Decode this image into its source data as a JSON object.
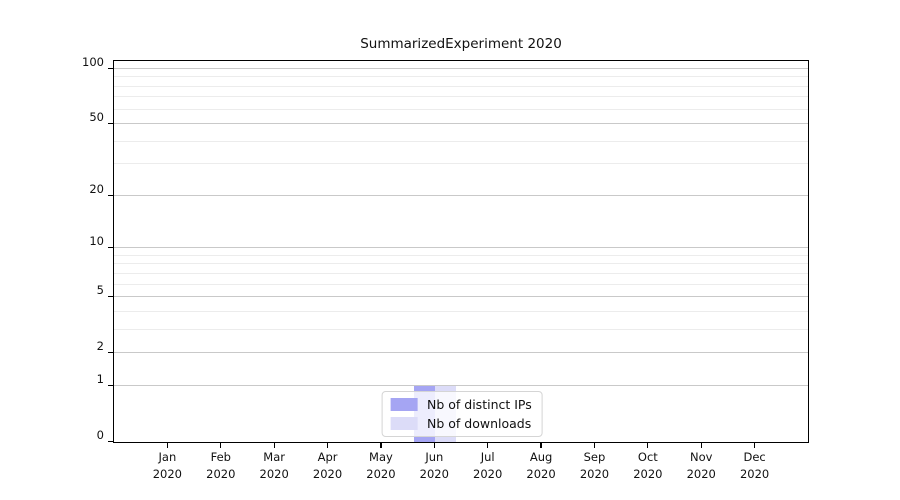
{
  "chart_data": {
    "type": "bar",
    "title": "SummarizedExperiment 2020",
    "categories": [
      "Jan",
      "Feb",
      "Mar",
      "Apr",
      "May",
      "Jun",
      "Jul",
      "Aug",
      "Sep",
      "Oct",
      "Nov",
      "Dec"
    ],
    "category_year": "2020",
    "series": [
      {
        "name": "Nb of distinct IPs",
        "color": "#a5a5f3",
        "values": [
          0,
          0,
          0,
          0,
          0,
          1,
          0,
          0,
          0,
          0,
          0,
          0
        ]
      },
      {
        "name": "Nb of downloads",
        "color": "#dcdcf8",
        "values": [
          0,
          0,
          0,
          0,
          0,
          1,
          0,
          0,
          0,
          0,
          0,
          0
        ]
      }
    ],
    "y_axis": {
      "scale": "log1p",
      "ticks": [
        0,
        1,
        2,
        5,
        10,
        20,
        50,
        100
      ],
      "minor_gridlines": [
        3,
        4,
        6,
        7,
        8,
        9,
        30,
        40,
        60,
        70,
        80,
        90
      ],
      "max": 113
    },
    "colors": {
      "major_grid": "#c9c9c9",
      "minor_grid": "#ececec",
      "spine": "#000000",
      "background": "#ffffff"
    },
    "legend_position": "lower center",
    "grid": true
  }
}
